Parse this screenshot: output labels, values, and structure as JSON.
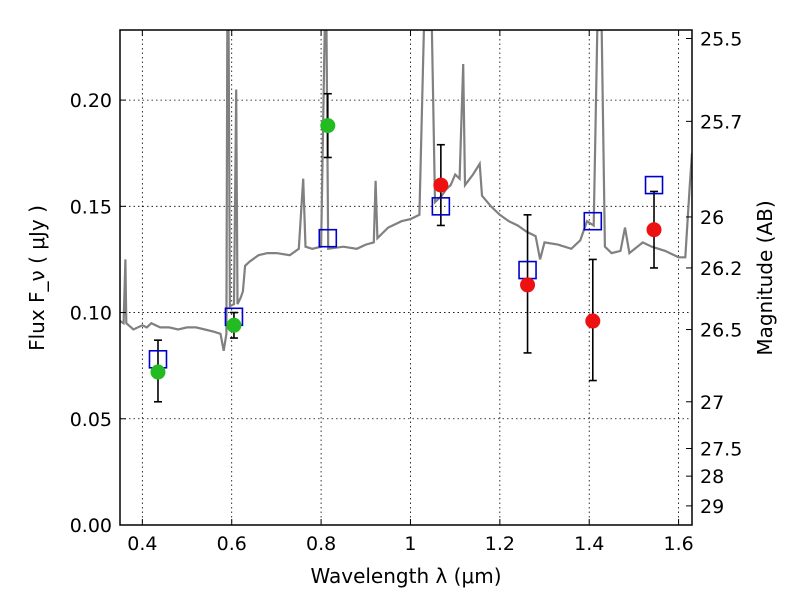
{
  "chart_data": {
    "type": "scatter",
    "title": "",
    "xlabel": "Wavelength  λ (μm)",
    "ylabel": "Flux  F_ν  ( μJy )",
    "ylabel_right": "Magnitude (AB)",
    "xlim": [
      0.35,
      1.63
    ],
    "ylim": [
      0.0,
      0.233
    ],
    "grid": true,
    "x_ticks": [
      0.4,
      0.6,
      0.8,
      1.0,
      1.2,
      1.4,
      1.6
    ],
    "x_tick_labels": [
      "0.4",
      "0.6",
      "0.8",
      "1",
      "1.2",
      "1.4",
      "1.6"
    ],
    "y_ticks": [
      0.0,
      0.05,
      0.1,
      0.15,
      0.2
    ],
    "y_tick_labels": [
      "0.00",
      "0.05",
      "0.10",
      "0.15",
      "0.20"
    ],
    "right_ticks": [
      {
        "label": "25.5",
        "flux": 0.229
      },
      {
        "label": "25.7",
        "flux": 0.19
      },
      {
        "label": "26",
        "flux": 0.145
      },
      {
        "label": "26.2",
        "flux": 0.121
      },
      {
        "label": "26.5",
        "flux": 0.092
      },
      {
        "label": "27",
        "flux": 0.058
      },
      {
        "label": "27.5",
        "flux": 0.036
      },
      {
        "label": "28",
        "flux": 0.023
      },
      {
        "label": "29",
        "flux": 0.009
      }
    ],
    "colors": {
      "sed": "#808080",
      "model_box": "#0000cc",
      "green_point": "#22bb22",
      "red_point": "#ee1111",
      "error_bar": "#000000"
    },
    "series": [
      {
        "marker": "green-circle",
        "points": [
          {
            "x": 0.435,
            "y": 0.072,
            "lo": 0.058,
            "hi": 0.087
          },
          {
            "x": 0.605,
            "y": 0.094,
            "lo": 0.088,
            "hi": 0.1
          },
          {
            "x": 0.815,
            "y": 0.188,
            "lo": 0.173,
            "hi": 0.203
          }
        ]
      },
      {
        "marker": "red-circle",
        "points": [
          {
            "x": 1.068,
            "y": 0.16,
            "lo": 0.141,
            "hi": 0.179
          },
          {
            "x": 1.262,
            "y": 0.113,
            "lo": 0.081,
            "hi": 0.146
          },
          {
            "x": 1.408,
            "y": 0.096,
            "lo": 0.068,
            "hi": 0.125
          },
          {
            "x": 1.545,
            "y": 0.139,
            "lo": 0.121,
            "hi": 0.157
          }
        ]
      },
      {
        "marker": "blue-open-square",
        "points": [
          {
            "x": 0.435,
            "y": 0.078
          },
          {
            "x": 0.605,
            "y": 0.098
          },
          {
            "x": 0.815,
            "y": 0.135
          },
          {
            "x": 1.068,
            "y": 0.15
          },
          {
            "x": 1.262,
            "y": 0.12
          },
          {
            "x": 1.408,
            "y": 0.143
          },
          {
            "x": 1.545,
            "y": 0.16
          }
        ]
      },
      {
        "marker": "gray-line",
        "line": [
          [
            0.35,
            0.096
          ],
          [
            0.358,
            0.095
          ],
          [
            0.362,
            0.125
          ],
          [
            0.364,
            0.095
          ],
          [
            0.38,
            0.092
          ],
          [
            0.4,
            0.094
          ],
          [
            0.41,
            0.093
          ],
          [
            0.42,
            0.095
          ],
          [
            0.44,
            0.093
          ],
          [
            0.46,
            0.093
          ],
          [
            0.48,
            0.092
          ],
          [
            0.5,
            0.093
          ],
          [
            0.52,
            0.093
          ],
          [
            0.54,
            0.092
          ],
          [
            0.56,
            0.091
          ],
          [
            0.575,
            0.09
          ],
          [
            0.582,
            0.082
          ],
          [
            0.588,
            0.09
          ],
          [
            0.59,
            0.233
          ],
          [
            0.593,
            0.233
          ],
          [
            0.596,
            0.103
          ],
          [
            0.605,
            0.104
          ],
          [
            0.61,
            0.205
          ],
          [
            0.613,
            0.104
          ],
          [
            0.62,
            0.107
          ],
          [
            0.625,
            0.11
          ],
          [
            0.63,
            0.122
          ],
          [
            0.64,
            0.124
          ],
          [
            0.66,
            0.127
          ],
          [
            0.68,
            0.128
          ],
          [
            0.7,
            0.128
          ],
          [
            0.73,
            0.127
          ],
          [
            0.75,
            0.13
          ],
          [
            0.76,
            0.163
          ],
          [
            0.765,
            0.131
          ],
          [
            0.78,
            0.13
          ],
          [
            0.8,
            0.131
          ],
          [
            0.808,
            0.233
          ],
          [
            0.812,
            0.233
          ],
          [
            0.816,
            0.13
          ],
          [
            0.85,
            0.131
          ],
          [
            0.88,
            0.13
          ],
          [
            0.9,
            0.132
          ],
          [
            0.918,
            0.133
          ],
          [
            0.922,
            0.162
          ],
          [
            0.926,
            0.135
          ],
          [
            0.95,
            0.14
          ],
          [
            0.98,
            0.143
          ],
          [
            1.0,
            0.144
          ],
          [
            1.02,
            0.146
          ],
          [
            1.03,
            0.233
          ],
          [
            1.048,
            0.233
          ],
          [
            1.055,
            0.152
          ],
          [
            1.07,
            0.155
          ],
          [
            1.08,
            0.158
          ],
          [
            1.09,
            0.16
          ],
          [
            1.1,
            0.165
          ],
          [
            1.11,
            0.163
          ],
          [
            1.118,
            0.217
          ],
          [
            1.122,
            0.16
          ],
          [
            1.14,
            0.165
          ],
          [
            1.155,
            0.17
          ],
          [
            1.16,
            0.155
          ],
          [
            1.18,
            0.15
          ],
          [
            1.2,
            0.146
          ],
          [
            1.22,
            0.143
          ],
          [
            1.24,
            0.141
          ],
          [
            1.26,
            0.138
          ],
          [
            1.28,
            0.136
          ],
          [
            1.29,
            0.125
          ],
          [
            1.3,
            0.133
          ],
          [
            1.33,
            0.132
          ],
          [
            1.36,
            0.13
          ],
          [
            1.38,
            0.134
          ],
          [
            1.395,
            0.143
          ],
          [
            1.41,
            0.141
          ],
          [
            1.418,
            0.233
          ],
          [
            1.428,
            0.233
          ],
          [
            1.435,
            0.131
          ],
          [
            1.45,
            0.128
          ],
          [
            1.47,
            0.129
          ],
          [
            1.48,
            0.14
          ],
          [
            1.49,
            0.128
          ],
          [
            1.52,
            0.133
          ],
          [
            1.54,
            0.131
          ],
          [
            1.57,
            0.129
          ],
          [
            1.6,
            0.126
          ],
          [
            1.615,
            0.126
          ],
          [
            1.625,
            0.16
          ],
          [
            1.63,
            0.175
          ]
        ]
      }
    ]
  }
}
